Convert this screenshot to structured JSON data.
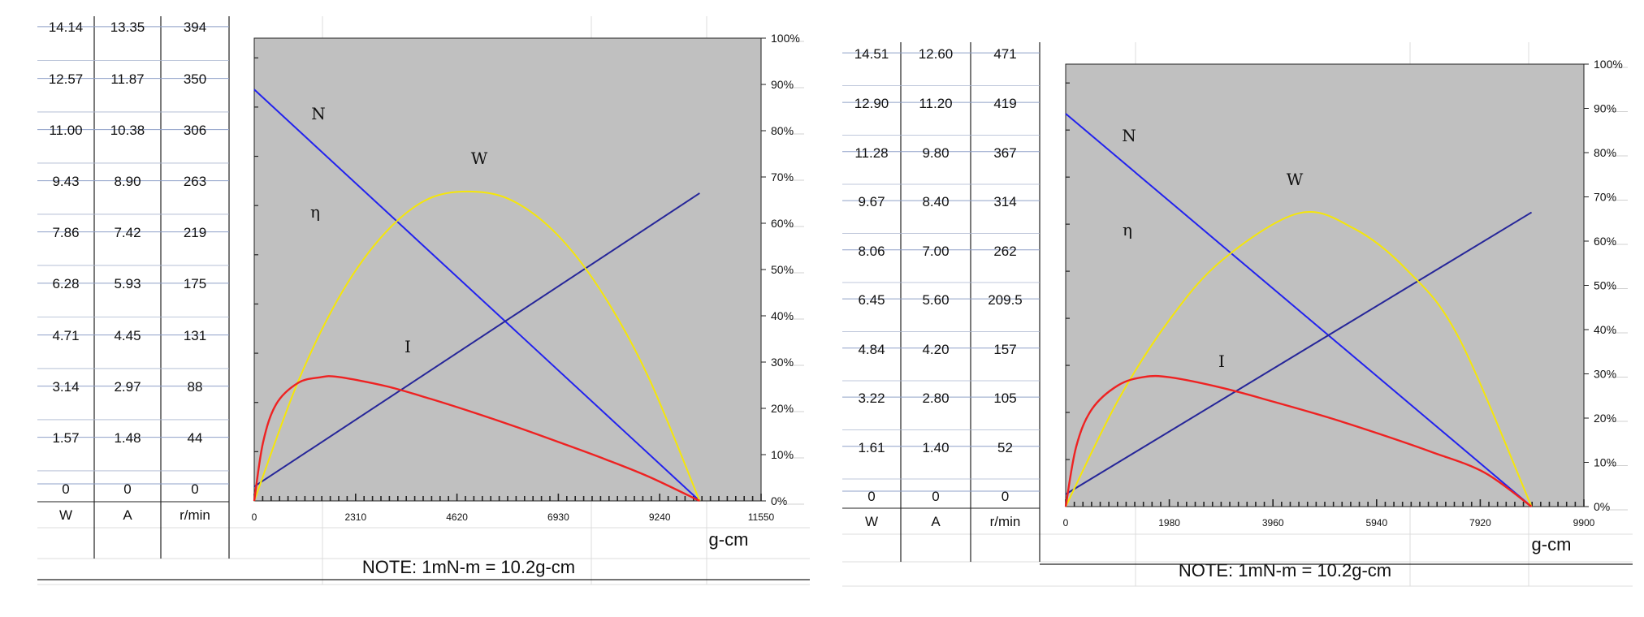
{
  "colors": {
    "plot_bg": "#c0c0c0",
    "speed": "#2222ee",
    "efficiency": "#f5e60a",
    "current": "#262699",
    "power": "#ee2222",
    "grid": "#8fa0c8"
  },
  "chart_data": [
    {
      "type": "line",
      "title": "",
      "table": {
        "headers": [
          "W",
          "A",
          "r/min"
        ],
        "rows": [
          [
            "14.14",
            "13.35",
            "394"
          ],
          [
            "12.57",
            "11.87",
            "350"
          ],
          [
            "11.00",
            "10.38",
            "306"
          ],
          [
            "9.43",
            "8.90",
            "263"
          ],
          [
            "7.86",
            "7.42",
            "219"
          ],
          [
            "6.28",
            "5.93",
            "175"
          ],
          [
            "4.71",
            "4.45",
            "131"
          ],
          [
            "3.14",
            "2.97",
            "88"
          ],
          [
            "1.57",
            "1.48",
            "44"
          ],
          [
            "0",
            "0",
            "0"
          ]
        ]
      },
      "xlabel": "g-cm",
      "xlim": [
        0,
        11550
      ],
      "x_ticks": [
        "0",
        "2310",
        "4620",
        "6930",
        "9240",
        "11550"
      ],
      "ylim_right": [
        0,
        100
      ],
      "y_ticks_right": [
        "0%",
        "10%",
        "20%",
        "30%",
        "40%",
        "50%",
        "60%",
        "70%",
        "80%",
        "90%",
        "100%"
      ],
      "series": [
        {
          "name": "N",
          "x": [
            0,
            10150
          ],
          "y": [
            88.9,
            0
          ]
        },
        {
          "name": "I",
          "x": [
            0,
            10150
          ],
          "y": [
            3.1,
            66.5
          ]
        },
        {
          "name": "W",
          "x": [
            0,
            1000,
            2000,
            3000,
            4000,
            5075,
            6000,
            7000,
            8000,
            9000,
            10150
          ],
          "y": [
            0,
            25.8,
            45.1,
            58.1,
            65.4,
            66.8,
            64.3,
            56.6,
            43.9,
            26.4,
            0
          ]
        },
        {
          "name": "η",
          "x": [
            0,
            200,
            500,
            1000,
            1500,
            1900,
            3000,
            4000,
            5000,
            6000,
            7000,
            8000,
            9000,
            10150
          ],
          "y": [
            0,
            12.6,
            20.9,
            25.5,
            26.7,
            26.8,
            24.8,
            22.1,
            19.1,
            15.9,
            12.5,
            9.0,
            5.2,
            0
          ]
        }
      ],
      "note": "NOTE: 1mN-m = 10.2g-cm"
    },
    {
      "type": "line",
      "title": "",
      "table": {
        "headers": [
          "W",
          "A",
          "r/min"
        ],
        "rows": [
          [
            "14.51",
            "12.60",
            "471"
          ],
          [
            "12.90",
            "11.20",
            "419"
          ],
          [
            "11.28",
            "9.80",
            "367"
          ],
          [
            "9.67",
            "8.40",
            "314"
          ],
          [
            "8.06",
            "7.00",
            "262"
          ],
          [
            "6.45",
            "5.60",
            "209.5"
          ],
          [
            "4.84",
            "4.20",
            "157"
          ],
          [
            "3.22",
            "2.80",
            "105"
          ],
          [
            "1.61",
            "1.40",
            "52"
          ],
          [
            "0",
            "0",
            "0"
          ]
        ]
      },
      "xlabel": "g-cm",
      "xlim": [
        0,
        9900
      ],
      "x_ticks": [
        "0",
        "1980",
        "3960",
        "5940",
        "7920",
        "9900"
      ],
      "ylim_right": [
        0,
        100
      ],
      "y_ticks_right": [
        "0%",
        "10%",
        "20%",
        "30%",
        "40%",
        "50%",
        "60%",
        "70%",
        "80%",
        "90%",
        "100%"
      ],
      "series": [
        {
          "name": "N",
          "x": [
            0,
            8900
          ],
          "y": [
            88.8,
            0
          ]
        },
        {
          "name": "I",
          "x": [
            0,
            8900
          ],
          "y": [
            2.8,
            66.5
          ]
        },
        {
          "name": "W",
          "x": [
            0,
            1000,
            2000,
            3000,
            4450,
            5500,
            6500,
            7500,
            8900
          ],
          "y": [
            0,
            24.0,
            42.5,
            55.8,
            66.3,
            62.9,
            53.7,
            38.4,
            0
          ]
        },
        {
          "name": "η",
          "x": [
            0,
            200,
            500,
            1000,
            1500,
            2000,
            3000,
            4000,
            5000,
            6000,
            7000,
            8000,
            8900
          ],
          "y": [
            0,
            13.5,
            22.0,
            27.4,
            29.3,
            29.2,
            26.8,
            23.6,
            20.2,
            16.4,
            12.3,
            7.7,
            0
          ]
        }
      ],
      "note": "NOTE: 1mN-m = 10.2g-cm"
    }
  ]
}
